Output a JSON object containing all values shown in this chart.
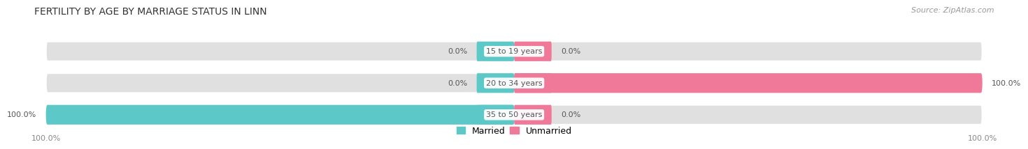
{
  "title": "FERTILITY BY AGE BY MARRIAGE STATUS IN LINN",
  "source": "Source: ZipAtlas.com",
  "categories": [
    "15 to 19 years",
    "20 to 34 years",
    "35 to 50 years"
  ],
  "married_values": [
    0.0,
    0.0,
    100.0
  ],
  "unmarried_values": [
    0.0,
    100.0,
    0.0
  ],
  "married_color": "#5CC8C8",
  "unmarried_color": "#F07898",
  "bar_bg_color": "#E0E0E0",
  "bar_height": 0.62,
  "title_fontsize": 10,
  "source_fontsize": 8,
  "label_fontsize": 8,
  "category_fontsize": 8,
  "legend_fontsize": 9,
  "axis_label_fontsize": 8,
  "background_color": "#FFFFFF"
}
